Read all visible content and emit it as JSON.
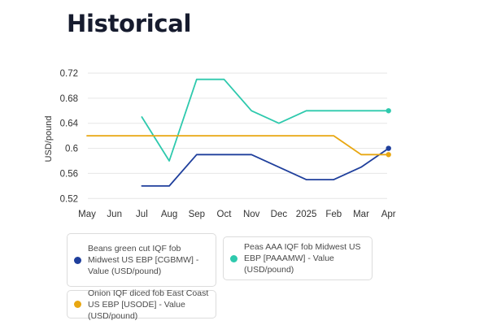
{
  "page": {
    "heading": "Historical"
  },
  "colors": {
    "beans": "#1f3f9c",
    "peas": "#2ec9ad",
    "onion": "#e8a712",
    "grid": "#e6e6e6",
    "text": "#333333"
  },
  "chart_data": {
    "type": "line",
    "title": "",
    "xlabel": "",
    "ylabel": "USD/pound",
    "categories": [
      "May",
      "Jun",
      "Jul",
      "Aug",
      "Sep",
      "Oct",
      "Nov",
      "Dec",
      "2025",
      "Feb",
      "Mar",
      "Apr"
    ],
    "y_ticks": [
      "0.72",
      "0.68",
      "0.64",
      "0.6",
      "0.56",
      "0.52"
    ],
    "y_tick_values": [
      0.72,
      0.68,
      0.64,
      0.6,
      0.56,
      0.52
    ],
    "ylim": [
      0.51,
      0.72
    ],
    "grid": "horizontal",
    "legend": "bottom",
    "series": [
      {
        "name": "Beans green cut IQF fob Midwest US EBP [CGBMW] - Value (USD/pound)",
        "color_key": "beans",
        "values": [
          null,
          null,
          0.54,
          0.54,
          0.59,
          0.59,
          0.59,
          0.57,
          0.55,
          0.55,
          0.57,
          0.6
        ]
      },
      {
        "name": "Peas AAA IQF fob Midwest US EBP [PAAAMW] - Value (USD/pound)",
        "color_key": "peas",
        "values": [
          null,
          null,
          0.65,
          0.58,
          0.71,
          0.71,
          0.66,
          0.64,
          0.66,
          0.66,
          0.66,
          0.66
        ]
      },
      {
        "name": "Onion IQF diced fob East Coast US EBP [USODE] - Value (USD/pound)",
        "color_key": "onion",
        "values": [
          0.62,
          0.62,
          0.62,
          0.62,
          0.62,
          0.62,
          0.62,
          0.62,
          0.62,
          0.62,
          0.59,
          0.59
        ]
      }
    ]
  }
}
